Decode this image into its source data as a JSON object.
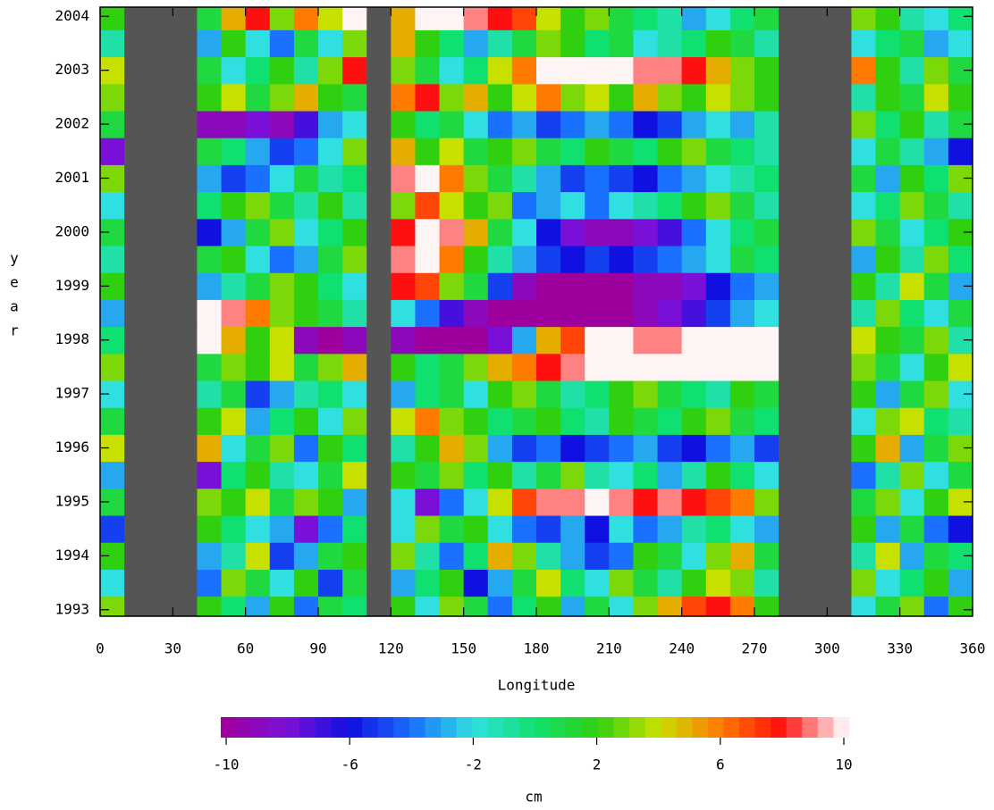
{
  "chart_data": {
    "type": "heatmap",
    "xlabel": "Longitude",
    "ylabel": "year",
    "colorbar_label": "cm",
    "missing_color": "#555555",
    "colormap": [
      "#9e009e",
      "#7a10d8",
      "#1010e0",
      "#1a70ff",
      "#30e0e0",
      "#10e070",
      "#30d010",
      "#c8e000",
      "#ff7a00",
      "#ff1010",
      "#fff4f4"
    ],
    "clim": [
      -10,
      10
    ],
    "cticks": [
      -10,
      -6,
      -2,
      2,
      6,
      10
    ],
    "x": [
      5,
      15,
      25,
      35,
      45,
      55,
      65,
      75,
      85,
      95,
      105,
      115,
      125,
      135,
      145,
      155,
      165,
      175,
      185,
      195,
      205,
      215,
      225,
      235,
      245,
      255,
      265,
      275,
      285,
      295,
      305,
      315,
      325,
      335,
      345,
      355
    ],
    "y": [
      1993,
      1993.5,
      1994,
      1994.5,
      1995,
      1995.5,
      1996,
      1996.5,
      1997,
      1997.5,
      1998,
      1998.5,
      1999,
      1999.5,
      2000,
      2000.5,
      2001,
      2001.5,
      2002,
      2002.5,
      2003,
      2003.5,
      2004
    ],
    "xlim": [
      0,
      360
    ],
    "xticks": [
      0,
      30,
      60,
      90,
      120,
      150,
      180,
      210,
      240,
      270,
      300,
      330,
      360
    ],
    "ylim": [
      1992.88,
      2004.17
    ],
    "yticks": [
      1993,
      1994,
      1995,
      1996,
      1997,
      1998,
      1999,
      2000,
      2001,
      2002,
      2003,
      2004
    ],
    "values": [
      [
        3,
        null,
        null,
        null,
        2,
        0,
        -3,
        2,
        -4,
        1,
        0,
        null,
        2,
        -2,
        3,
        1,
        -4,
        0,
        2,
        -3,
        1,
        -2,
        3,
        5,
        7,
        8,
        6,
        2,
        null,
        null,
        null,
        -2,
        1,
        3,
        -4,
        2
      ],
      [
        -2,
        null,
        null,
        null,
        -4,
        3,
        1,
        -2,
        2,
        -5,
        1,
        null,
        -3,
        0,
        2,
        -6,
        -3,
        1,
        4,
        0,
        -2,
        3,
        1,
        -1,
        2,
        4,
        3,
        -1,
        null,
        null,
        null,
        3,
        -2,
        0,
        2,
        -3
      ],
      [
        2,
        null,
        null,
        null,
        -3,
        -1,
        4,
        -5,
        -3,
        1,
        2,
        null,
        3,
        -1,
        -4,
        0,
        5,
        3,
        -1,
        -3,
        -5,
        -4,
        2,
        1,
        -2,
        3,
        5,
        1,
        null,
        null,
        null,
        -1,
        4,
        -3,
        1,
        0
      ],
      [
        -5,
        null,
        null,
        null,
        2,
        0,
        -2,
        -3,
        -8,
        -4,
        0,
        null,
        -2,
        3,
        1,
        2,
        -2,
        -4,
        -5,
        -3,
        -6,
        -2,
        -4,
        -3,
        -1,
        0,
        -2,
        -3,
        null,
        null,
        null,
        2,
        -3,
        1,
        -4,
        -6
      ],
      [
        1,
        null,
        null,
        null,
        3,
        2,
        4,
        1,
        3,
        2,
        -3,
        null,
        -2,
        -8,
        -4,
        -2,
        4,
        7,
        9,
        9,
        10,
        9,
        8,
        9,
        8,
        7,
        6,
        3,
        null,
        null,
        null,
        1,
        3,
        -2,
        2,
        4
      ],
      [
        -3,
        null,
        null,
        null,
        -8,
        0,
        2,
        -1,
        -2,
        1,
        4,
        null,
        2,
        1,
        3,
        0,
        2,
        -1,
        1,
        3,
        -1,
        -2,
        0,
        -3,
        -1,
        2,
        0,
        -2,
        null,
        null,
        null,
        -4,
        -1,
        3,
        -2,
        1
      ],
      [
        4,
        null,
        null,
        null,
        5,
        -2,
        1,
        3,
        -4,
        2,
        0,
        null,
        -1,
        2,
        5,
        3,
        -3,
        -5,
        -4,
        -6,
        -5,
        -4,
        -3,
        -5,
        -6,
        -4,
        -3,
        -5,
        null,
        null,
        null,
        2,
        5,
        -3,
        1,
        3
      ],
      [
        1,
        null,
        null,
        null,
        2,
        4,
        -3,
        0,
        2,
        -2,
        3,
        null,
        4,
        6,
        3,
        2,
        0,
        1,
        2,
        0,
        -1,
        2,
        1,
        0,
        2,
        3,
        1,
        0,
        null,
        null,
        null,
        -2,
        3,
        4,
        0,
        -1
      ],
      [
        -2,
        null,
        null,
        null,
        -1,
        1,
        -5,
        -3,
        -1,
        0,
        -2,
        null,
        -3,
        0,
        1,
        -2,
        2,
        3,
        1,
        -1,
        0,
        2,
        3,
        1,
        0,
        -1,
        2,
        1,
        null,
        null,
        null,
        2,
        -3,
        1,
        3,
        -2
      ],
      [
        3,
        null,
        null,
        null,
        1,
        3,
        2,
        4,
        1,
        3,
        5,
        null,
        2,
        0,
        1,
        3,
        5,
        6,
        8,
        9,
        10,
        10,
        10,
        10,
        10,
        10,
        10,
        10,
        null,
        null,
        null,
        3,
        1,
        -2,
        2,
        4
      ],
      [
        0,
        null,
        null,
        null,
        10,
        5,
        2,
        4,
        -9,
        -10,
        -9,
        null,
        -9,
        -10,
        -10,
        -10,
        -8,
        -3,
        5,
        7,
        10,
        10,
        9,
        9,
        10,
        10,
        10,
        10,
        null,
        null,
        null,
        4,
        2,
        1,
        3,
        -1
      ],
      [
        -3,
        null,
        null,
        null,
        10,
        9,
        6,
        3,
        2,
        1,
        -1,
        null,
        -2,
        -4,
        -7,
        -9,
        -10,
        -10,
        -10,
        -10,
        -10,
        -10,
        -9,
        -8,
        -7,
        -5,
        -3,
        -2,
        null,
        null,
        null,
        -1,
        3,
        0,
        -2,
        1
      ],
      [
        2,
        null,
        null,
        null,
        -3,
        -1,
        1,
        3,
        2,
        0,
        -2,
        null,
        8,
        7,
        3,
        1,
        -5,
        -9,
        -10,
        -10,
        -10,
        -10,
        -9,
        -9,
        -8,
        -6,
        -4,
        -3,
        null,
        null,
        null,
        2,
        -1,
        4,
        1,
        -3
      ],
      [
        -1,
        null,
        null,
        null,
        1,
        2,
        -2,
        -4,
        -3,
        1,
        3,
        null,
        9,
        10,
        6,
        2,
        -1,
        -3,
        -5,
        -6,
        -5,
        -6,
        -5,
        -4,
        -3,
        -2,
        1,
        0,
        null,
        null,
        null,
        -3,
        2,
        -1,
        3,
        0
      ],
      [
        1,
        null,
        null,
        null,
        -6,
        -3,
        1,
        3,
        -2,
        0,
        2,
        null,
        8,
        10,
        9,
        5,
        1,
        -2,
        -6,
        -8,
        -9,
        -9,
        -8,
        -7,
        -4,
        -2,
        0,
        1,
        null,
        null,
        null,
        3,
        1,
        -2,
        0,
        2
      ],
      [
        -2,
        null,
        null,
        null,
        0,
        2,
        3,
        1,
        -1,
        2,
        -1,
        null,
        3,
        7,
        4,
        2,
        3,
        -4,
        -3,
        -2,
        -4,
        -2,
        -1,
        0,
        2,
        3,
        1,
        -1,
        null,
        null,
        null,
        -2,
        0,
        3,
        1,
        -1
      ],
      [
        3,
        null,
        null,
        null,
        -3,
        -5,
        -4,
        -2,
        1,
        -1,
        0,
        null,
        9,
        10,
        6,
        3,
        1,
        -1,
        -3,
        -5,
        -4,
        -5,
        -6,
        -4,
        -3,
        -2,
        -1,
        0,
        null,
        null,
        null,
        1,
        -3,
        2,
        0,
        3
      ],
      [
        -8,
        null,
        null,
        null,
        1,
        0,
        -3,
        -5,
        -4,
        -2,
        3,
        null,
        5,
        2,
        4,
        1,
        2,
        3,
        1,
        0,
        2,
        1,
        0,
        2,
        3,
        1,
        0,
        -1,
        null,
        null,
        null,
        -2,
        1,
        -1,
        -3,
        -6
      ],
      [
        1,
        null,
        null,
        null,
        -9,
        -9,
        -8,
        -9,
        -7,
        -3,
        -2,
        null,
        2,
        0,
        1,
        -2,
        -4,
        -3,
        -5,
        -4,
        -3,
        -4,
        -6,
        -5,
        -3,
        -2,
        -3,
        -1,
        null,
        null,
        null,
        3,
        0,
        2,
        -1,
        1
      ],
      [
        3,
        null,
        null,
        null,
        2,
        4,
        1,
        3,
        5,
        2,
        1,
        null,
        6,
        8,
        3,
        5,
        2,
        4,
        6,
        3,
        4,
        2,
        5,
        3,
        2,
        4,
        3,
        2,
        null,
        null,
        null,
        -1,
        2,
        1,
        4,
        2
      ],
      [
        4,
        null,
        null,
        null,
        1,
        -2,
        0,
        2,
        -1,
        3,
        8,
        null,
        3,
        1,
        -2,
        0,
        4,
        6,
        10,
        10,
        10,
        10,
        9,
        9,
        8,
        5,
        3,
        2,
        null,
        null,
        null,
        6,
        2,
        -1,
        3,
        1
      ],
      [
        -1,
        null,
        null,
        null,
        -3,
        2,
        -2,
        -4,
        1,
        -2,
        3,
        null,
        5,
        2,
        0,
        -3,
        -1,
        1,
        3,
        2,
        0,
        1,
        -2,
        -1,
        0,
        2,
        1,
        -1,
        null,
        null,
        null,
        -2,
        0,
        1,
        -3,
        -2
      ],
      [
        2,
        null,
        null,
        null,
        1,
        5,
        8,
        3,
        6,
        4,
        10,
        null,
        5,
        10,
        10,
        9,
        8,
        7,
        4,
        2,
        3,
        1,
        0,
        -1,
        -3,
        -2,
        0,
        1,
        null,
        null,
        null,
        3,
        2,
        -1,
        -2,
        0
      ]
    ]
  }
}
